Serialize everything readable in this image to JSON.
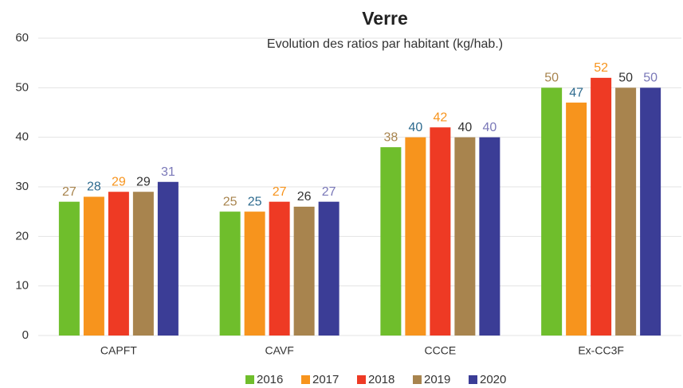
{
  "chart_data": {
    "type": "bar",
    "title": "Verre",
    "subtitle": "Evolution des ratios par habitant (kg/hab.)",
    "categories": [
      "CAPFT",
      "CAVF",
      "CCCE",
      "Ex-CC3F"
    ],
    "series": [
      {
        "name": "2016",
        "color": "#6fbe2c",
        "label_color": "#a8844e",
        "values": [
          27,
          25,
          38,
          50
        ]
      },
      {
        "name": "2017",
        "color": "#f7941d",
        "label_color": "#2e6b8f",
        "values": [
          28,
          25,
          40,
          47
        ]
      },
      {
        "name": "2018",
        "color": "#ee3a24",
        "label_color": "#f7941d",
        "values": [
          29,
          27,
          42,
          52
        ]
      },
      {
        "name": "2019",
        "color": "#a8844e",
        "label_color": "#333333",
        "values": [
          29,
          26,
          40,
          50
        ]
      },
      {
        "name": "2020",
        "color": "#3b3d96",
        "label_color": "#7a78b8",
        "values": [
          31,
          27,
          40,
          50
        ]
      }
    ],
    "ylim": [
      0,
      60
    ],
    "yticks": [
      0,
      10,
      20,
      30,
      40,
      50,
      60
    ],
    "grid": true,
    "legend": "bottom"
  }
}
